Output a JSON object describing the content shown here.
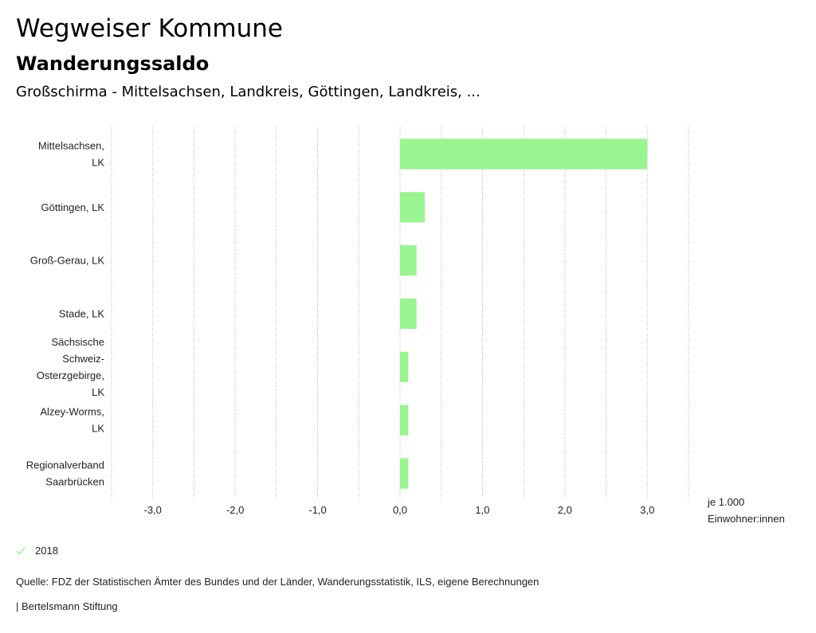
{
  "header": {
    "title": "Wegweiser Kommune",
    "subtitle": "Wanderungssaldo",
    "regions": "Großschirma - Mittelsachsen, Landkreis, Göttingen, Landkreis, ..."
  },
  "chart_data": {
    "type": "bar",
    "orientation": "horizontal",
    "categories": [
      [
        "Mittelsachsen,",
        "LK"
      ],
      [
        "Göttingen, LK"
      ],
      [
        "Groß-Gerau, LK"
      ],
      [
        "Stade, LK"
      ],
      [
        "Sächsische",
        "Schweiz-",
        "Osterzgebirge,",
        "LK"
      ],
      [
        "Alzey-Worms,",
        "LK"
      ],
      [
        "Regionalverband",
        "Saarbrücken"
      ]
    ],
    "series": [
      {
        "name": "2018",
        "values": [
          3.0,
          0.3,
          0.2,
          0.2,
          0.1,
          0.1,
          0.1
        ],
        "color": "#99f58f"
      }
    ],
    "xlim": [
      -3.5,
      3.5
    ],
    "ticks": [
      -3,
      -2,
      -1,
      0,
      1,
      2,
      3
    ],
    "tick_labels": [
      "-3,0",
      "-2,0",
      "-1,0",
      "0,0",
      "1,0",
      "2,0",
      "3,0"
    ],
    "unit_label": [
      "je 1.000",
      "Einwohner:innen"
    ],
    "grid": true
  },
  "legend": {
    "label": "2018",
    "color": "#99f58f"
  },
  "footer": {
    "source": "Quelle: FDZ der Statistischen Ämter des Bundes und der Länder, Wanderungsstatistik, ILS, eigene Berechnungen",
    "credit": "| Bertelsmann Stiftung"
  }
}
